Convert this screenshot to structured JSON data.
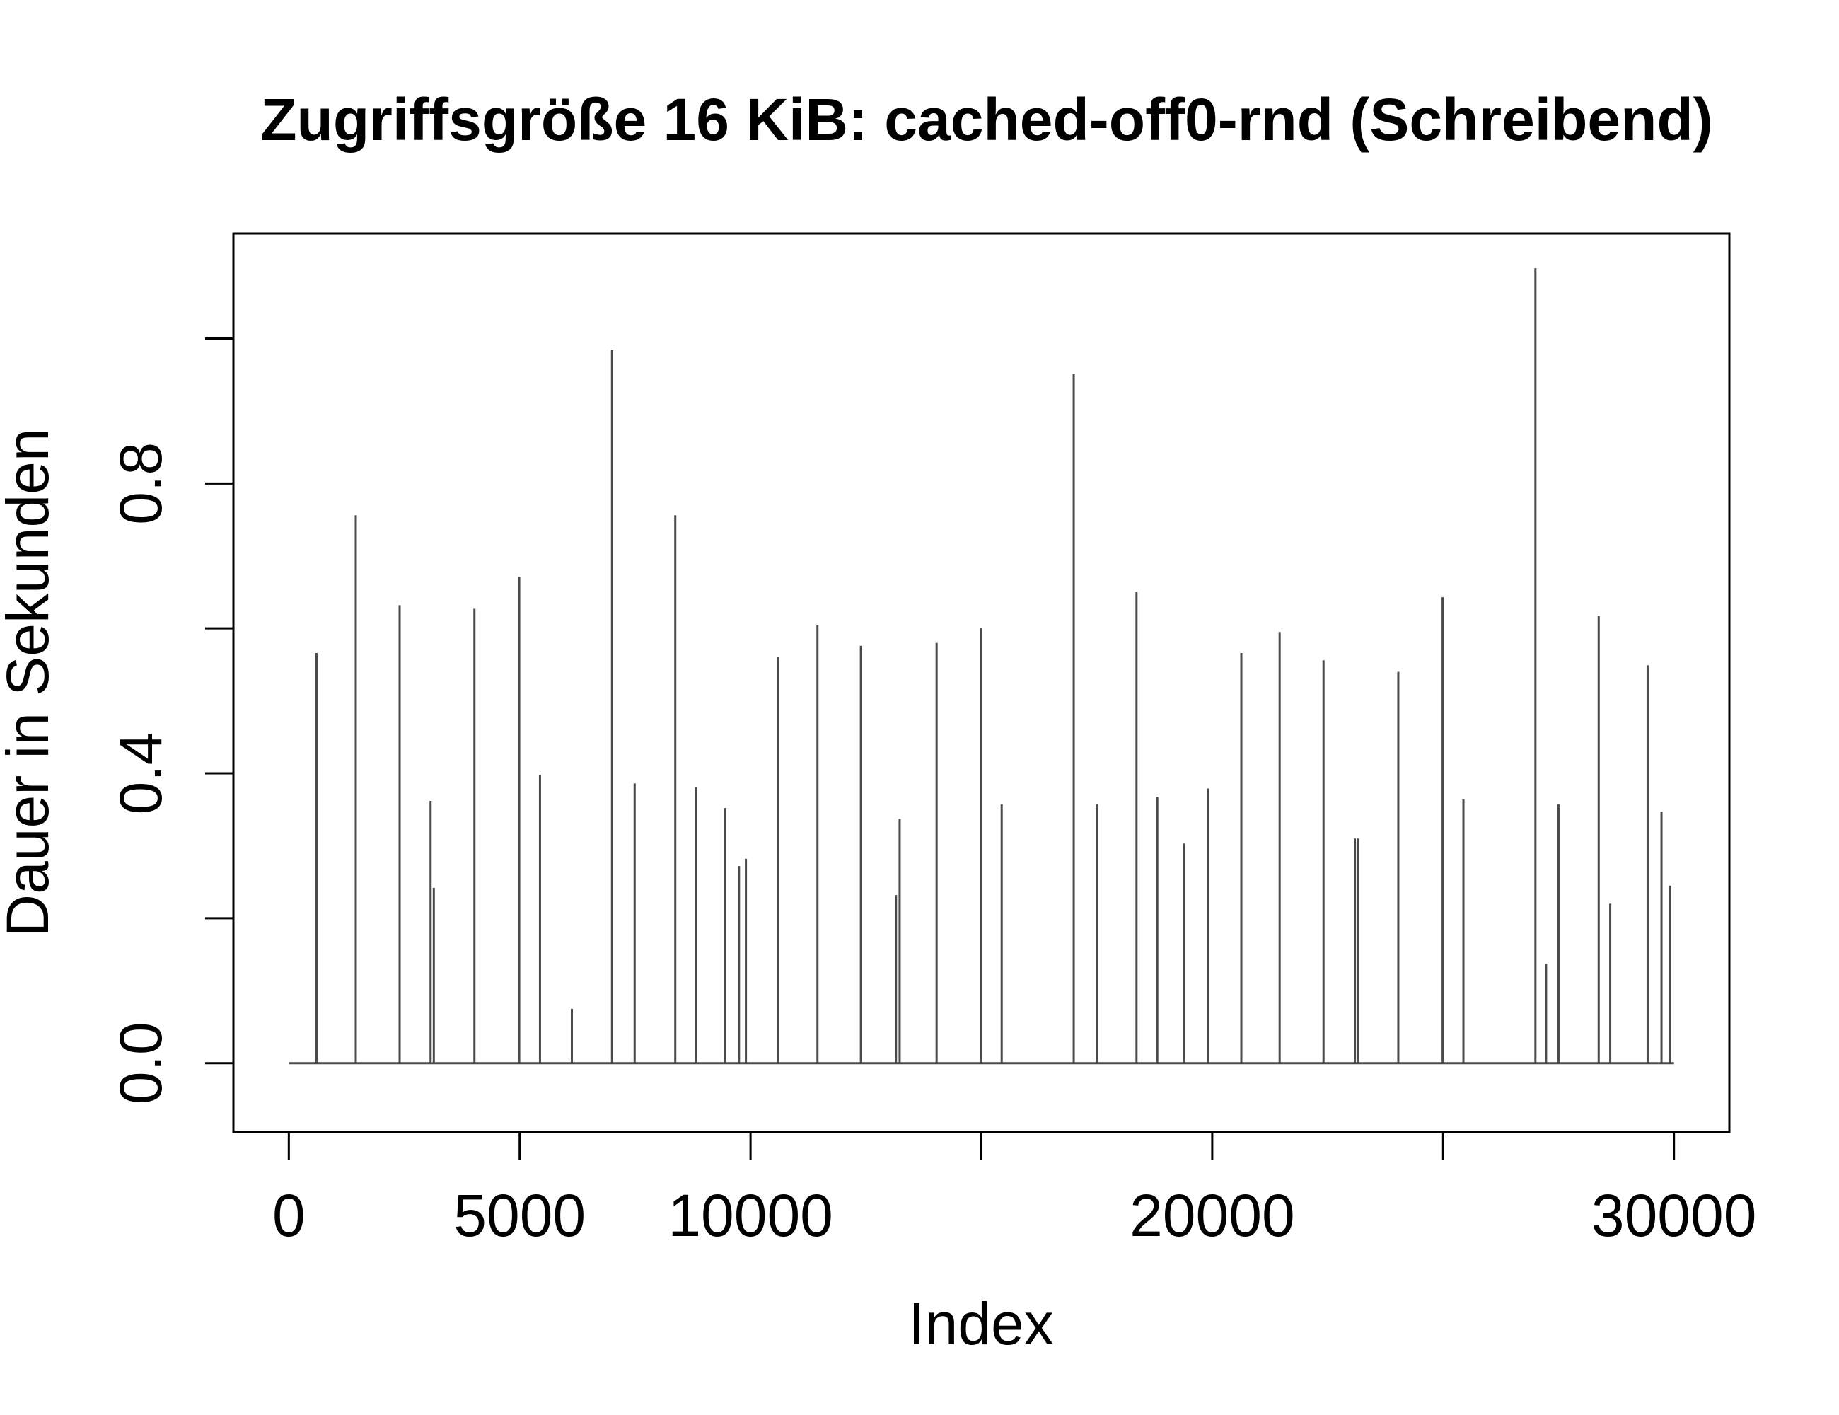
{
  "chart_data": {
    "type": "line",
    "style": "histogram-spikes",
    "title": "Zugriffsgröße 16 KiB: cached-off0-rnd (Schreibend)",
    "xlabel": "Index",
    "ylabel": "Dauer in Sekunden",
    "xlim": [
      -1200,
      31200
    ],
    "ylim": [
      -0.095,
      1.145
    ],
    "x_ticks": [
      0,
      5000,
      10000,
      15000,
      20000,
      25000,
      30000
    ],
    "x_tick_labels": [
      "0",
      "5000",
      "10000",
      "",
      "20000",
      "",
      "30000"
    ],
    "y_ticks": [
      0.0,
      0.2,
      0.4,
      0.6,
      0.8,
      1.0
    ],
    "y_tick_labels": [
      "0.0",
      "",
      "0.4",
      "",
      "0.8",
      ""
    ],
    "baseline": 0.0,
    "line_color": "#4a4a4a",
    "grid": false,
    "legend": "none",
    "series": [
      {
        "x": [
          600,
          1450,
          2400,
          3070,
          3140,
          4020,
          4990,
          5440,
          6130,
          7000,
          7490,
          8370,
          8820,
          9450,
          9750,
          9900,
          10600,
          11450,
          12390,
          13150,
          13230,
          14030,
          14990,
          15440,
          17000,
          17500,
          18360,
          18810,
          19390,
          19910,
          20630,
          21460,
          22410,
          23090,
          23160,
          24030,
          24990,
          25440,
          27000,
          27230,
          27500,
          28370,
          28620,
          29430,
          29730,
          29920
        ],
        "y": [
          0.566,
          0.756,
          0.632,
          0.362,
          0.242,
          0.627,
          0.671,
          0.398,
          0.075,
          0.984,
          0.386,
          0.756,
          0.381,
          0.352,
          0.272,
          0.282,
          0.561,
          0.605,
          0.576,
          0.232,
          0.337,
          0.58,
          0.6,
          0.357,
          0.951,
          0.357,
          0.65,
          0.367,
          0.303,
          0.379,
          0.566,
          0.595,
          0.556,
          0.31,
          0.31,
          0.54,
          0.643,
          0.364,
          1.097,
          0.137,
          0.357,
          0.617,
          0.22,
          0.549,
          0.347,
          0.245
        ]
      }
    ]
  }
}
